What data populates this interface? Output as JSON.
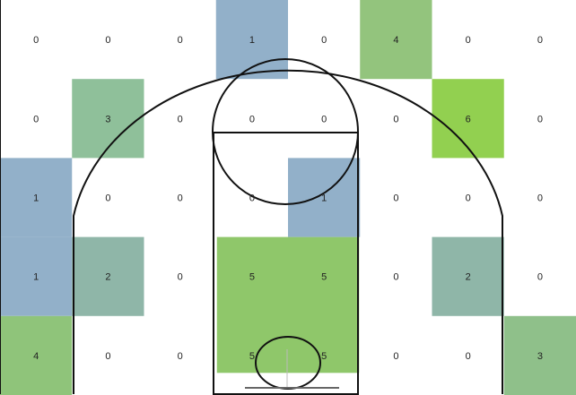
{
  "chart_data": {
    "type": "heatmap",
    "title": "",
    "xlabel": "",
    "ylabel": "",
    "columns": 8,
    "rows": [
      [
        0,
        0,
        0,
        1,
        0,
        4,
        0,
        0
      ],
      [
        0,
        3,
        0,
        0,
        0,
        0,
        6,
        0
      ],
      [
        1,
        0,
        0,
        0,
        1,
        0,
        0,
        0
      ],
      [
        1,
        2,
        0,
        5,
        5,
        0,
        2,
        0
      ],
      [
        4,
        0,
        0,
        5,
        5,
        0,
        0,
        3
      ]
    ],
    "cell_colors": [
      [
        null,
        null,
        null,
        "#92b0c9",
        null,
        "#93c47d",
        null,
        null
      ],
      [
        null,
        "#8fc09a",
        null,
        null,
        null,
        null,
        "#92d050",
        null
      ],
      [
        "#92b0c9",
        null,
        null,
        null,
        "#92b0c9",
        null,
        null,
        null
      ],
      [
        "#92b0c9",
        "#8fb6a8",
        null,
        "#8fc76a",
        "#8fc76a",
        null,
        "#8fb6a8",
        null
      ],
      [
        "#8fc47a",
        null,
        null,
        "#8fc76a",
        "#8fc76a",
        null,
        null,
        "#8fc08a"
      ]
    ],
    "merged_zones": [
      {
        "row_span": [
          3,
          4
        ],
        "col_span": [
          3,
          4
        ],
        "color": "#8fc76a"
      }
    ],
    "background": "basketball half court diagram",
    "colors": {
      "court_line": "#111111",
      "cell_text": "#222222",
      "empty_cell": "#ffffff"
    }
  }
}
